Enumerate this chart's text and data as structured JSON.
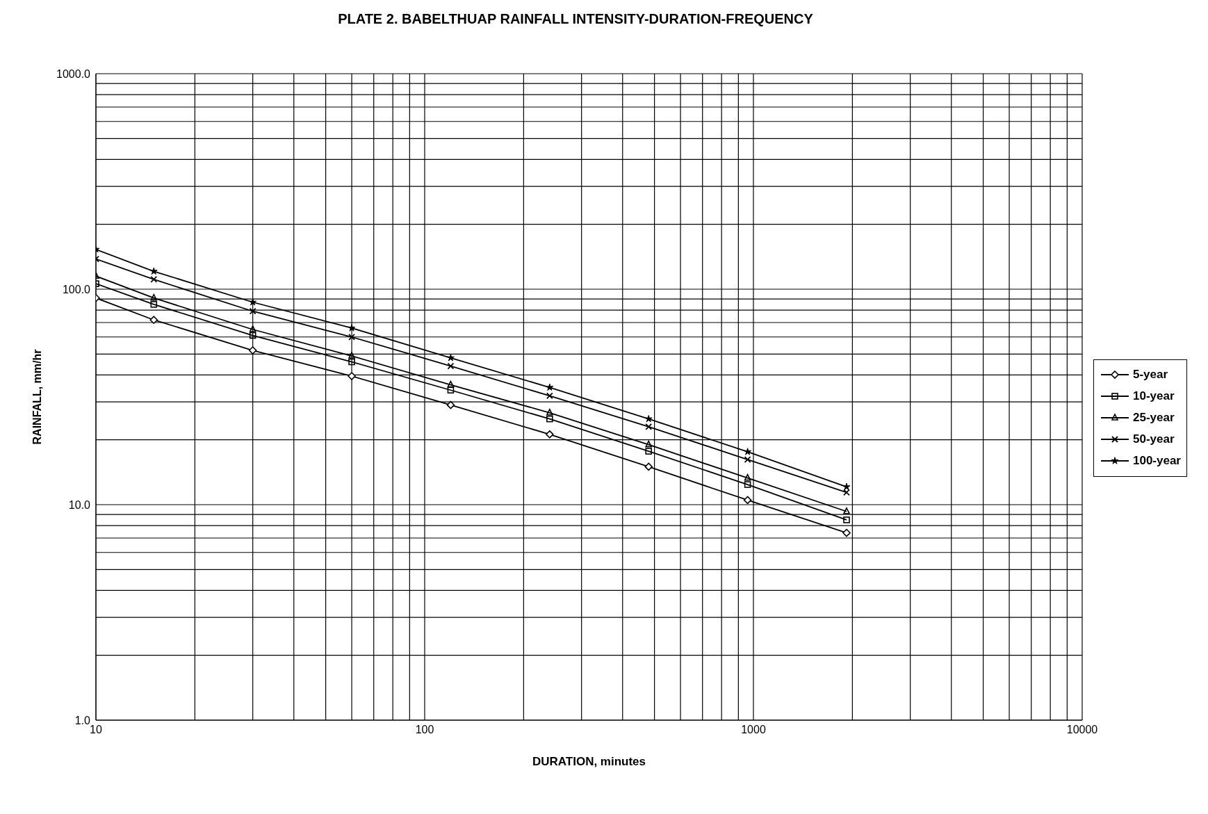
{
  "chart_data": {
    "type": "line",
    "title": "PLATE 2. BABELTHUAP RAINFALL INTENSITY-DURATION-FREQUENCY",
    "xlabel": "DURATION, minutes",
    "ylabel": "RAINFALL, mm/hr",
    "x": [
      10,
      15,
      30,
      60,
      120,
      240,
      480,
      960,
      1920
    ],
    "series": [
      {
        "name": "5-year",
        "color": "#000000",
        "marker": "diamond",
        "values": [
          91,
          72,
          52,
          39.5,
          29,
          21.2,
          15,
          10.5,
          7.4
        ]
      },
      {
        "name": "10-year",
        "color": "#000000",
        "marker": "square",
        "values": [
          106,
          85,
          61,
          46,
          34,
          25,
          17.7,
          12.4,
          8.5
        ]
      },
      {
        "name": "25-year",
        "color": "#000000",
        "marker": "triangle",
        "values": [
          115,
          91,
          65,
          49,
          36,
          26.7,
          19,
          13.3,
          9.3
        ]
      },
      {
        "name": "50-year",
        "color": "#000000",
        "marker": "cross",
        "values": [
          138,
          111,
          79,
          60,
          44,
          32,
          23,
          16.2,
          11.4
        ]
      },
      {
        "name": "100-year",
        "color": "#000000",
        "marker": "star",
        "values": [
          153,
          121,
          87,
          66,
          48,
          35,
          25,
          17.6,
          12.1
        ]
      }
    ],
    "log": "xy",
    "xlim": [
      10,
      10000
    ],
    "ylim": [
      1,
      1000
    ],
    "xticks": [
      10,
      {
        "value": 20,
        "label": null
      },
      {
        "value": 30,
        "label": null
      },
      {
        "value": 40,
        "label": null
      },
      {
        "value": 50,
        "label": null
      },
      {
        "value": 60,
        "label": null
      },
      {
        "value": 70,
        "label": null
      },
      {
        "value": 80,
        "label": null
      },
      {
        "value": 90,
        "label": null
      },
      100,
      {
        "value": 200,
        "label": null
      },
      {
        "value": 300,
        "label": null
      },
      {
        "value": 400,
        "label": null
      },
      {
        "value": 500,
        "label": null
      },
      {
        "value": 600,
        "label": null
      },
      {
        "value": 700,
        "label": null
      },
      {
        "value": 800,
        "label": null
      },
      {
        "value": 900,
        "label": null
      },
      1000,
      {
        "value": 2000,
        "label": null
      },
      {
        "value": 3000,
        "label": null
      },
      {
        "value": 4000,
        "label": null
      },
      {
        "value": 5000,
        "label": null
      },
      {
        "value": 6000,
        "label": null
      },
      {
        "value": 7000,
        "label": null
      },
      {
        "value": 8000,
        "label": null
      },
      {
        "value": 9000,
        "label": null
      },
      10000
    ],
    "yticks": [
      {
        "value": 1,
        "label": "1.0"
      },
      {
        "value": 2,
        "label": null
      },
      {
        "value": 3,
        "label": null
      },
      {
        "value": 4,
        "label": null
      },
      {
        "value": 5,
        "label": null
      },
      {
        "value": 6,
        "label": null
      },
      {
        "value": 7,
        "label": null
      },
      {
        "value": 8,
        "label": null
      },
      {
        "value": 9,
        "label": null
      },
      {
        "value": 10,
        "label": "10.0"
      },
      {
        "value": 20,
        "label": null
      },
      {
        "value": 30,
        "label": null
      },
      {
        "value": 40,
        "label": null
      },
      {
        "value": 50,
        "label": null
      },
      {
        "value": 60,
        "label": null
      },
      {
        "value": 70,
        "label": null
      },
      {
        "value": 80,
        "label": null
      },
      {
        "value": 90,
        "label": null
      },
      {
        "value": 100,
        "label": "100.0"
      },
      {
        "value": 200,
        "label": null
      },
      {
        "value": 300,
        "label": null
      },
      {
        "value": 400,
        "label": null
      },
      {
        "value": 500,
        "label": null
      },
      {
        "value": 600,
        "label": null
      },
      {
        "value": 700,
        "label": null
      },
      {
        "value": 800,
        "label": null
      },
      {
        "value": 900,
        "label": null
      },
      {
        "value": 1000,
        "label": "1000.0"
      }
    ],
    "grid": true,
    "legend": "right",
    "line_style": "solid"
  }
}
